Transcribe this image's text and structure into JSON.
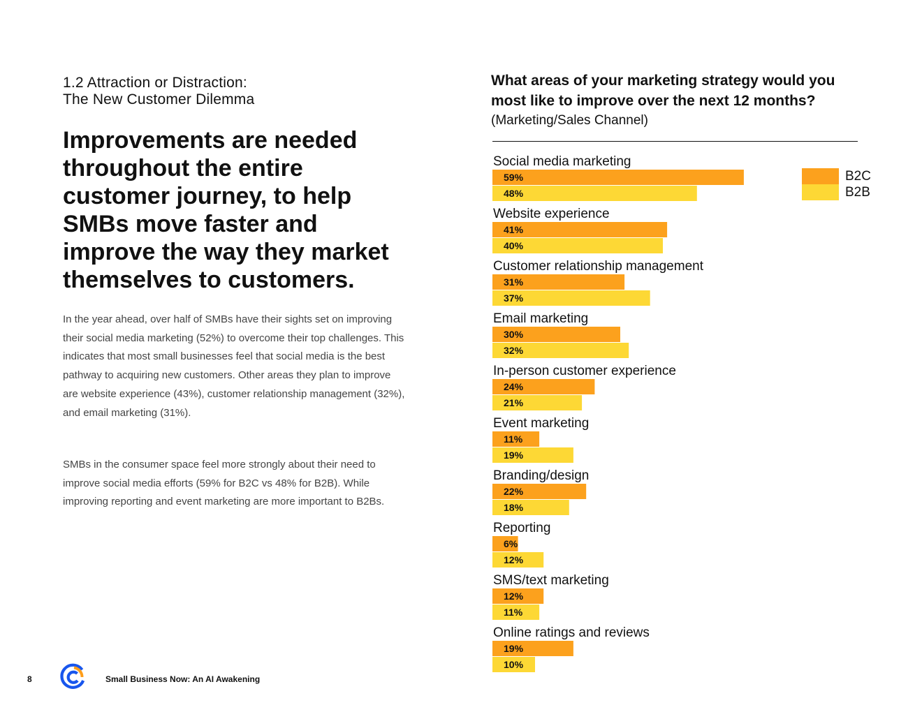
{
  "page": {
    "section_title_line1": "1.2 Attraction or Distraction:",
    "section_title_line2": "The New Customer Dilemma",
    "headline": "Improvements are needed throughout the entire customer journey, to help SMBs move faster and improve the way they market themselves to customers.",
    "paragraph1": "In the year ahead, over half of SMBs have their sights set on improving their social media marketing (52%) to overcome their top challenges. This indicates that most small businesses feel that social media is the best pathway to acquiring new customers. Other areas they plan to improve are website experience (43%), customer relationship management (32%), and email marketing (31%).",
    "paragraph2": "SMBs in the consumer space feel more strongly about their need to improve social media efforts (59% for B2C vs 48% for B2B). While improving reporting and event marketing are more important to B2Bs."
  },
  "chart_data": {
    "type": "bar",
    "orientation": "horizontal",
    "title": "What areas of your marketing strategy would you most like to improve over the next 12 months?",
    "subtitle": "(Marketing/Sales Channel)",
    "categories": [
      "Social media marketing",
      "Website experience",
      "Customer relationship management",
      "Email marketing",
      "In-person customer experience",
      "Event marketing",
      "Branding/design",
      "Reporting",
      "SMS/text marketing",
      "Online ratings and reviews"
    ],
    "series": [
      {
        "name": "B2C",
        "color": "#FCA11D",
        "values": [
          59,
          41,
          31,
          30,
          24,
          11,
          22,
          6,
          12,
          19
        ]
      },
      {
        "name": "B2B",
        "color": "#FDD835",
        "values": [
          48,
          40,
          37,
          32,
          21,
          19,
          18,
          12,
          11,
          10
        ]
      }
    ],
    "value_suffix": "%",
    "legend": "top-right",
    "grid": false
  },
  "footer": {
    "page_number": "8",
    "document_title": "Small Business Now: An AI Awakening"
  },
  "icons": {
    "footer_logo": "constant-contact-logo-icon"
  },
  "colors": {
    "b2c": "#FCA11D",
    "b2b": "#FDD835",
    "logo_blue": "#1856ED",
    "logo_orange": "#FF9E1A"
  }
}
